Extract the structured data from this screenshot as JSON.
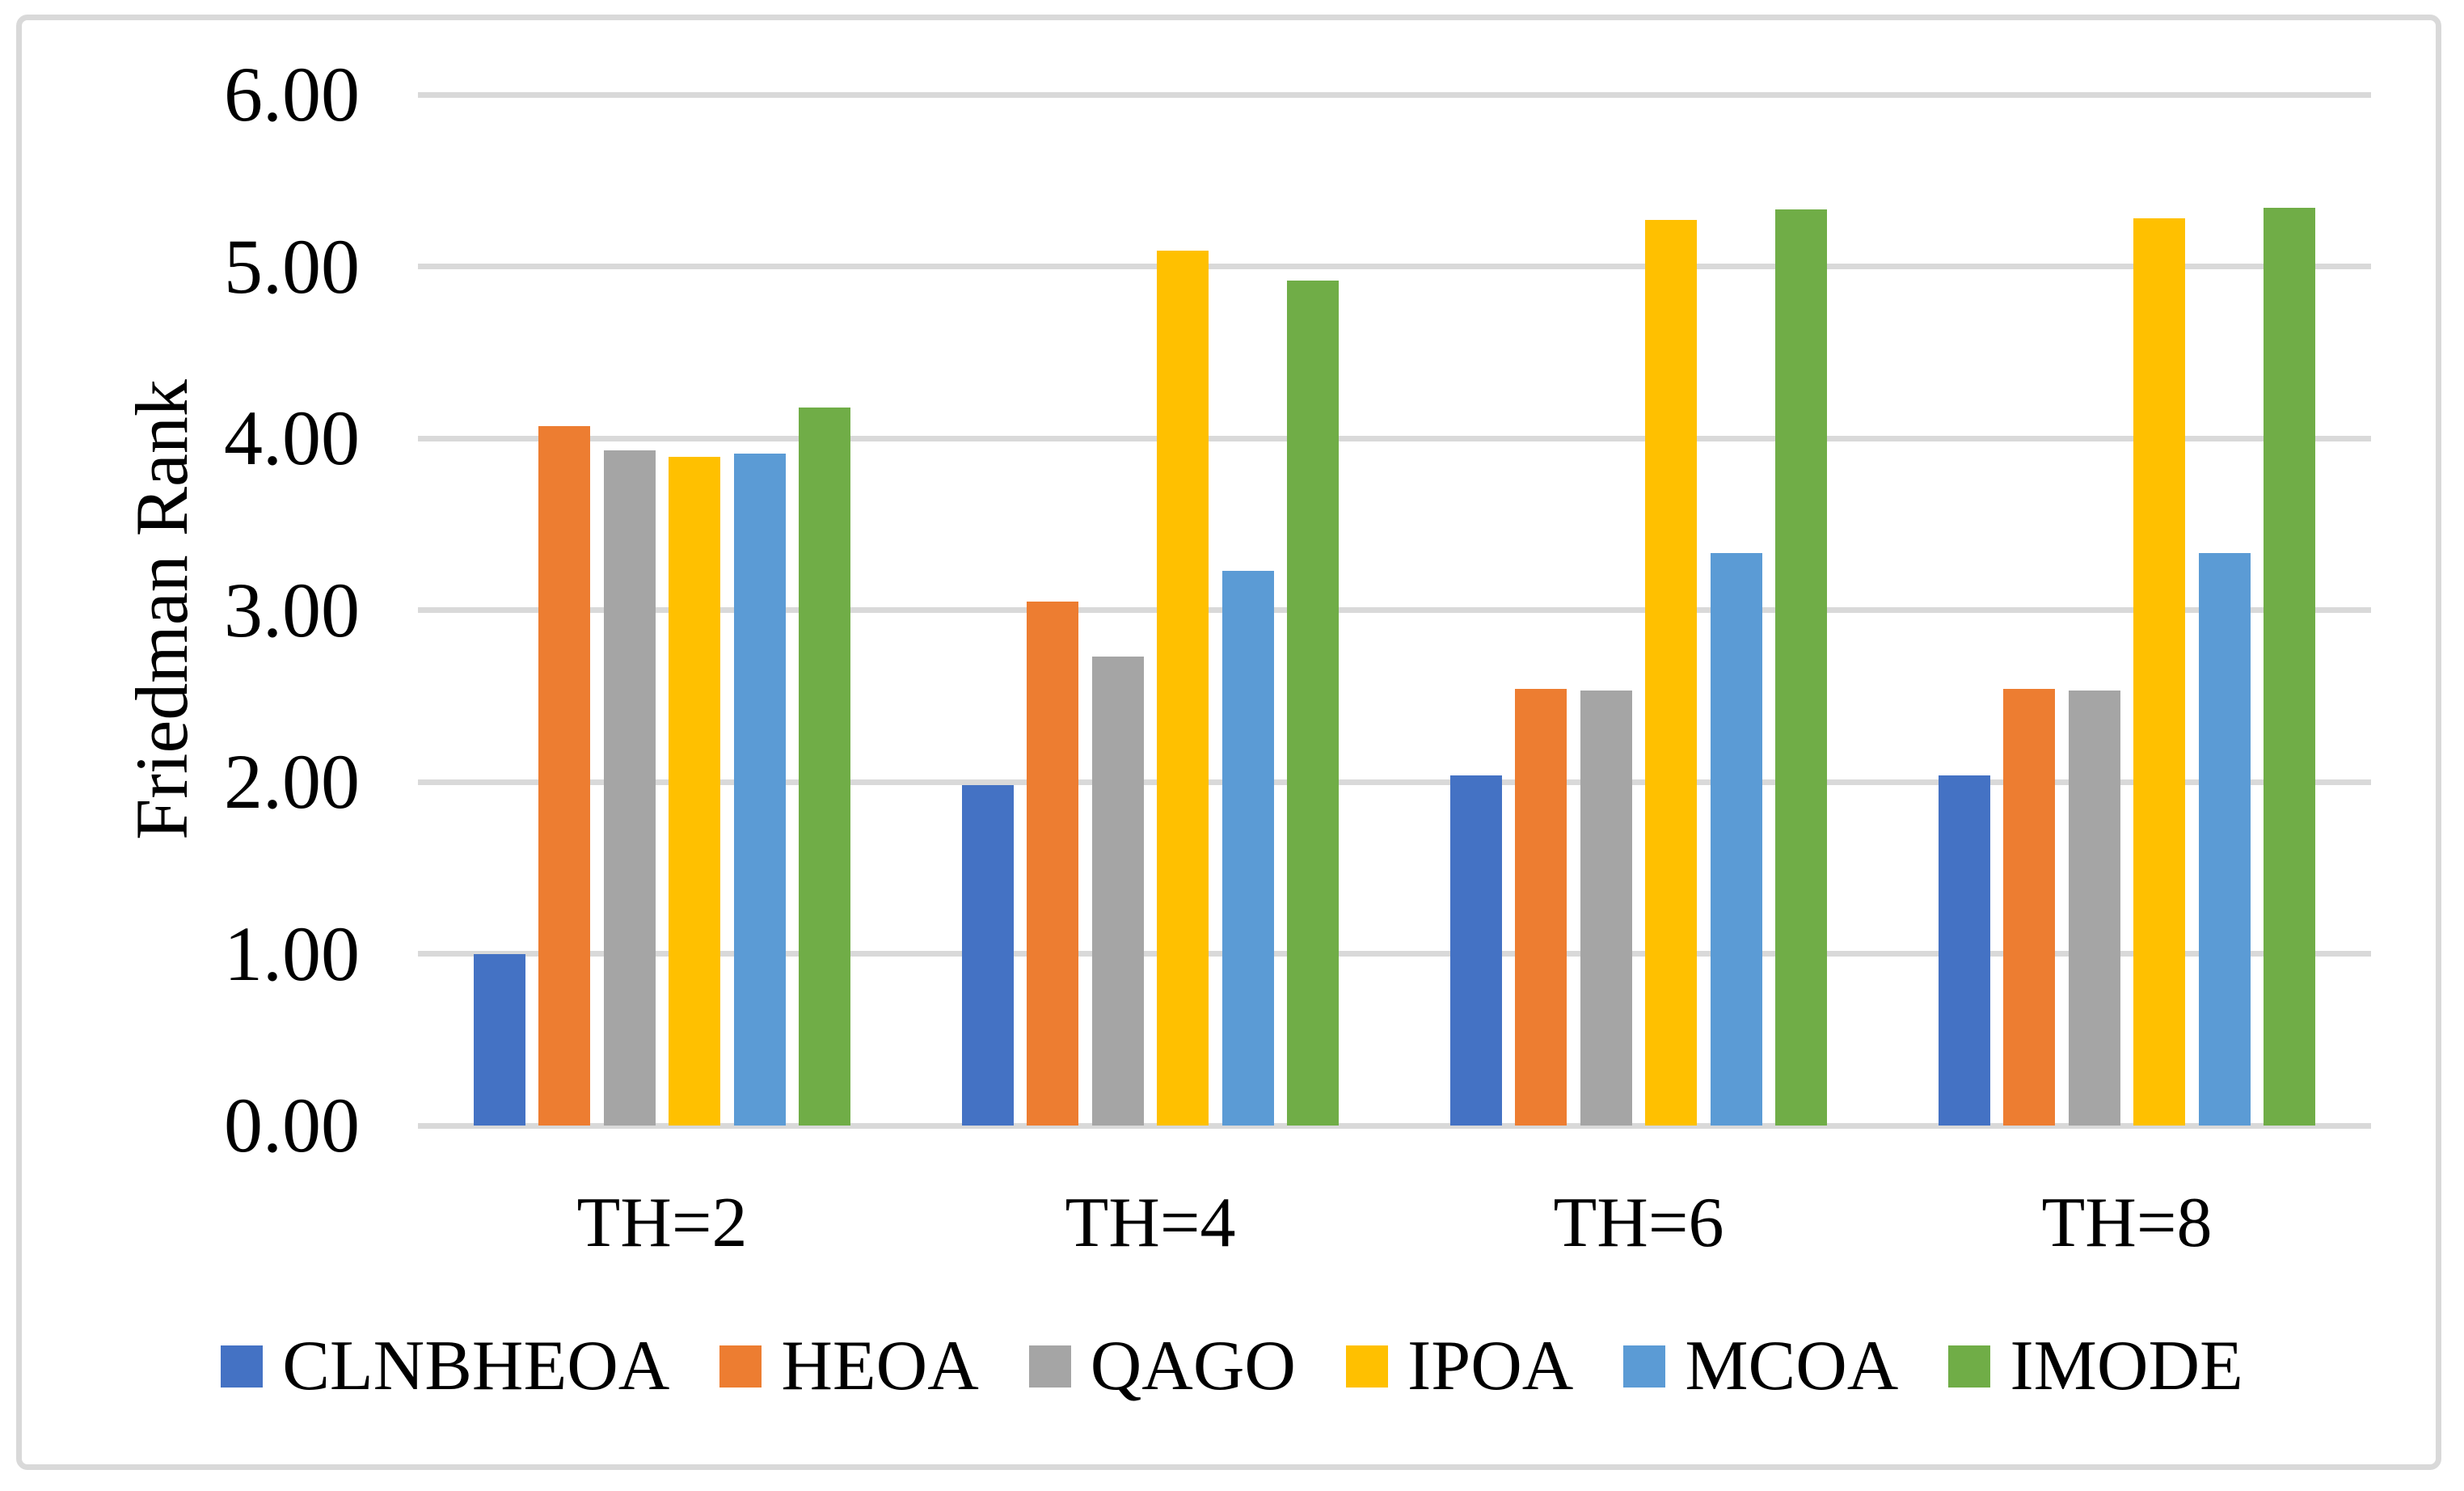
{
  "chart_data": {
    "type": "bar",
    "title": "",
    "ylabel": "Friedman Rank",
    "categories": [
      "TH=2",
      "TH=4",
      "TH=6",
      "TH=8"
    ],
    "series": [
      {
        "name": "CLNBHEOA",
        "color": "#4472C4",
        "values": [
          1.0,
          1.98,
          2.04,
          2.04
        ]
      },
      {
        "name": "HEOA",
        "color": "#ED7D31",
        "values": [
          4.07,
          3.05,
          2.54,
          2.54
        ]
      },
      {
        "name": "QAGO",
        "color": "#A5A5A5",
        "values": [
          3.93,
          2.73,
          2.53,
          2.53
        ]
      },
      {
        "name": "IPOA",
        "color": "#FFC000",
        "values": [
          3.89,
          5.09,
          5.27,
          5.28
        ]
      },
      {
        "name": "MCOA",
        "color": "#5B9BD5",
        "values": [
          3.91,
          3.23,
          3.33,
          3.33
        ]
      },
      {
        "name": "IMODE",
        "color": "#70AD47",
        "values": [
          4.18,
          4.92,
          5.33,
          5.34
        ]
      }
    ],
    "ylim": [
      0,
      6
    ],
    "ytick_labels": [
      "0.00",
      "1.00",
      "2.00",
      "3.00",
      "4.00",
      "5.00",
      "6.00"
    ],
    "grid": "horizontal",
    "grid_color": "#D9D9D9",
    "frame_color": "#D9D9D9",
    "background": "#FFFFFF",
    "legend_position": "bottom"
  }
}
